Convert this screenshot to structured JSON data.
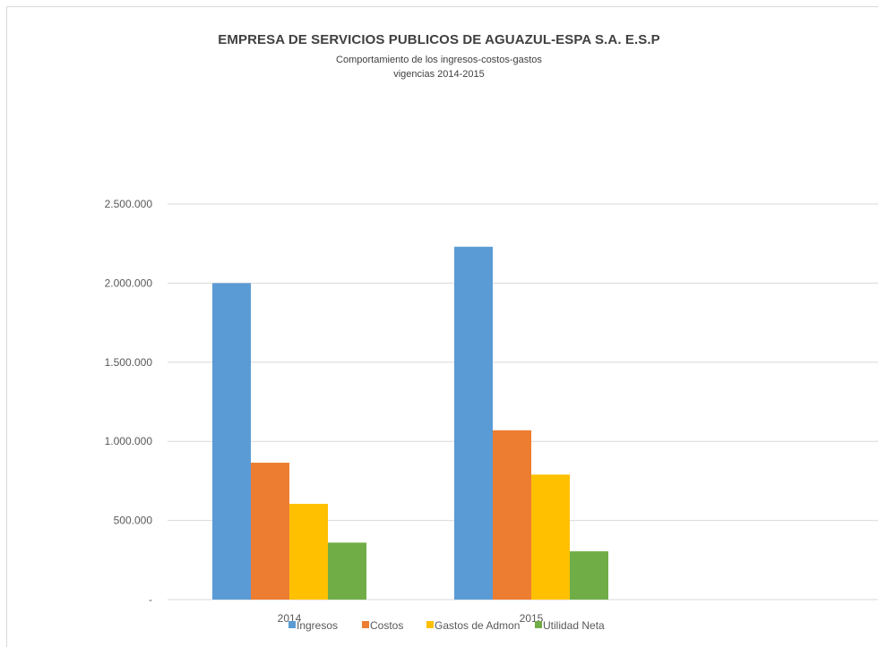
{
  "chart_data": {
    "type": "bar",
    "title": "EMPRESA DE SERVICIOS PUBLICOS DE AGUAZUL-ESPA S.A. E.S.P",
    "subtitle_lines": [
      "Comportamiento de los ingresos-costos-gastos",
      "vigencias 2014-2015"
    ],
    "categories": [
      "2014",
      "2015"
    ],
    "series": [
      {
        "name": "Ingresos",
        "color": "#5b9bd5",
        "values": [
          2000000,
          2230000
        ]
      },
      {
        "name": "Costos",
        "color": "#ed7d31",
        "values": [
          865000,
          1070000
        ]
      },
      {
        "name": "Gastos de Admon",
        "color": "#ffc000",
        "values": [
          605000,
          790000
        ]
      },
      {
        "name": "Utilidad Neta",
        "color": "#70ad47",
        "values": [
          360000,
          305000
        ]
      }
    ],
    "ylim": [
      0,
      2500000
    ],
    "yticks": [
      0,
      500000,
      1000000,
      1500000,
      2000000,
      2500000
    ],
    "ytick_labels": [
      "-",
      "500.000",
      "1.000.000",
      "1.500.000",
      "2.000.000",
      "2.500.000"
    ],
    "xlabel": "",
    "ylabel": "",
    "grid": true,
    "legend": "bottom"
  }
}
